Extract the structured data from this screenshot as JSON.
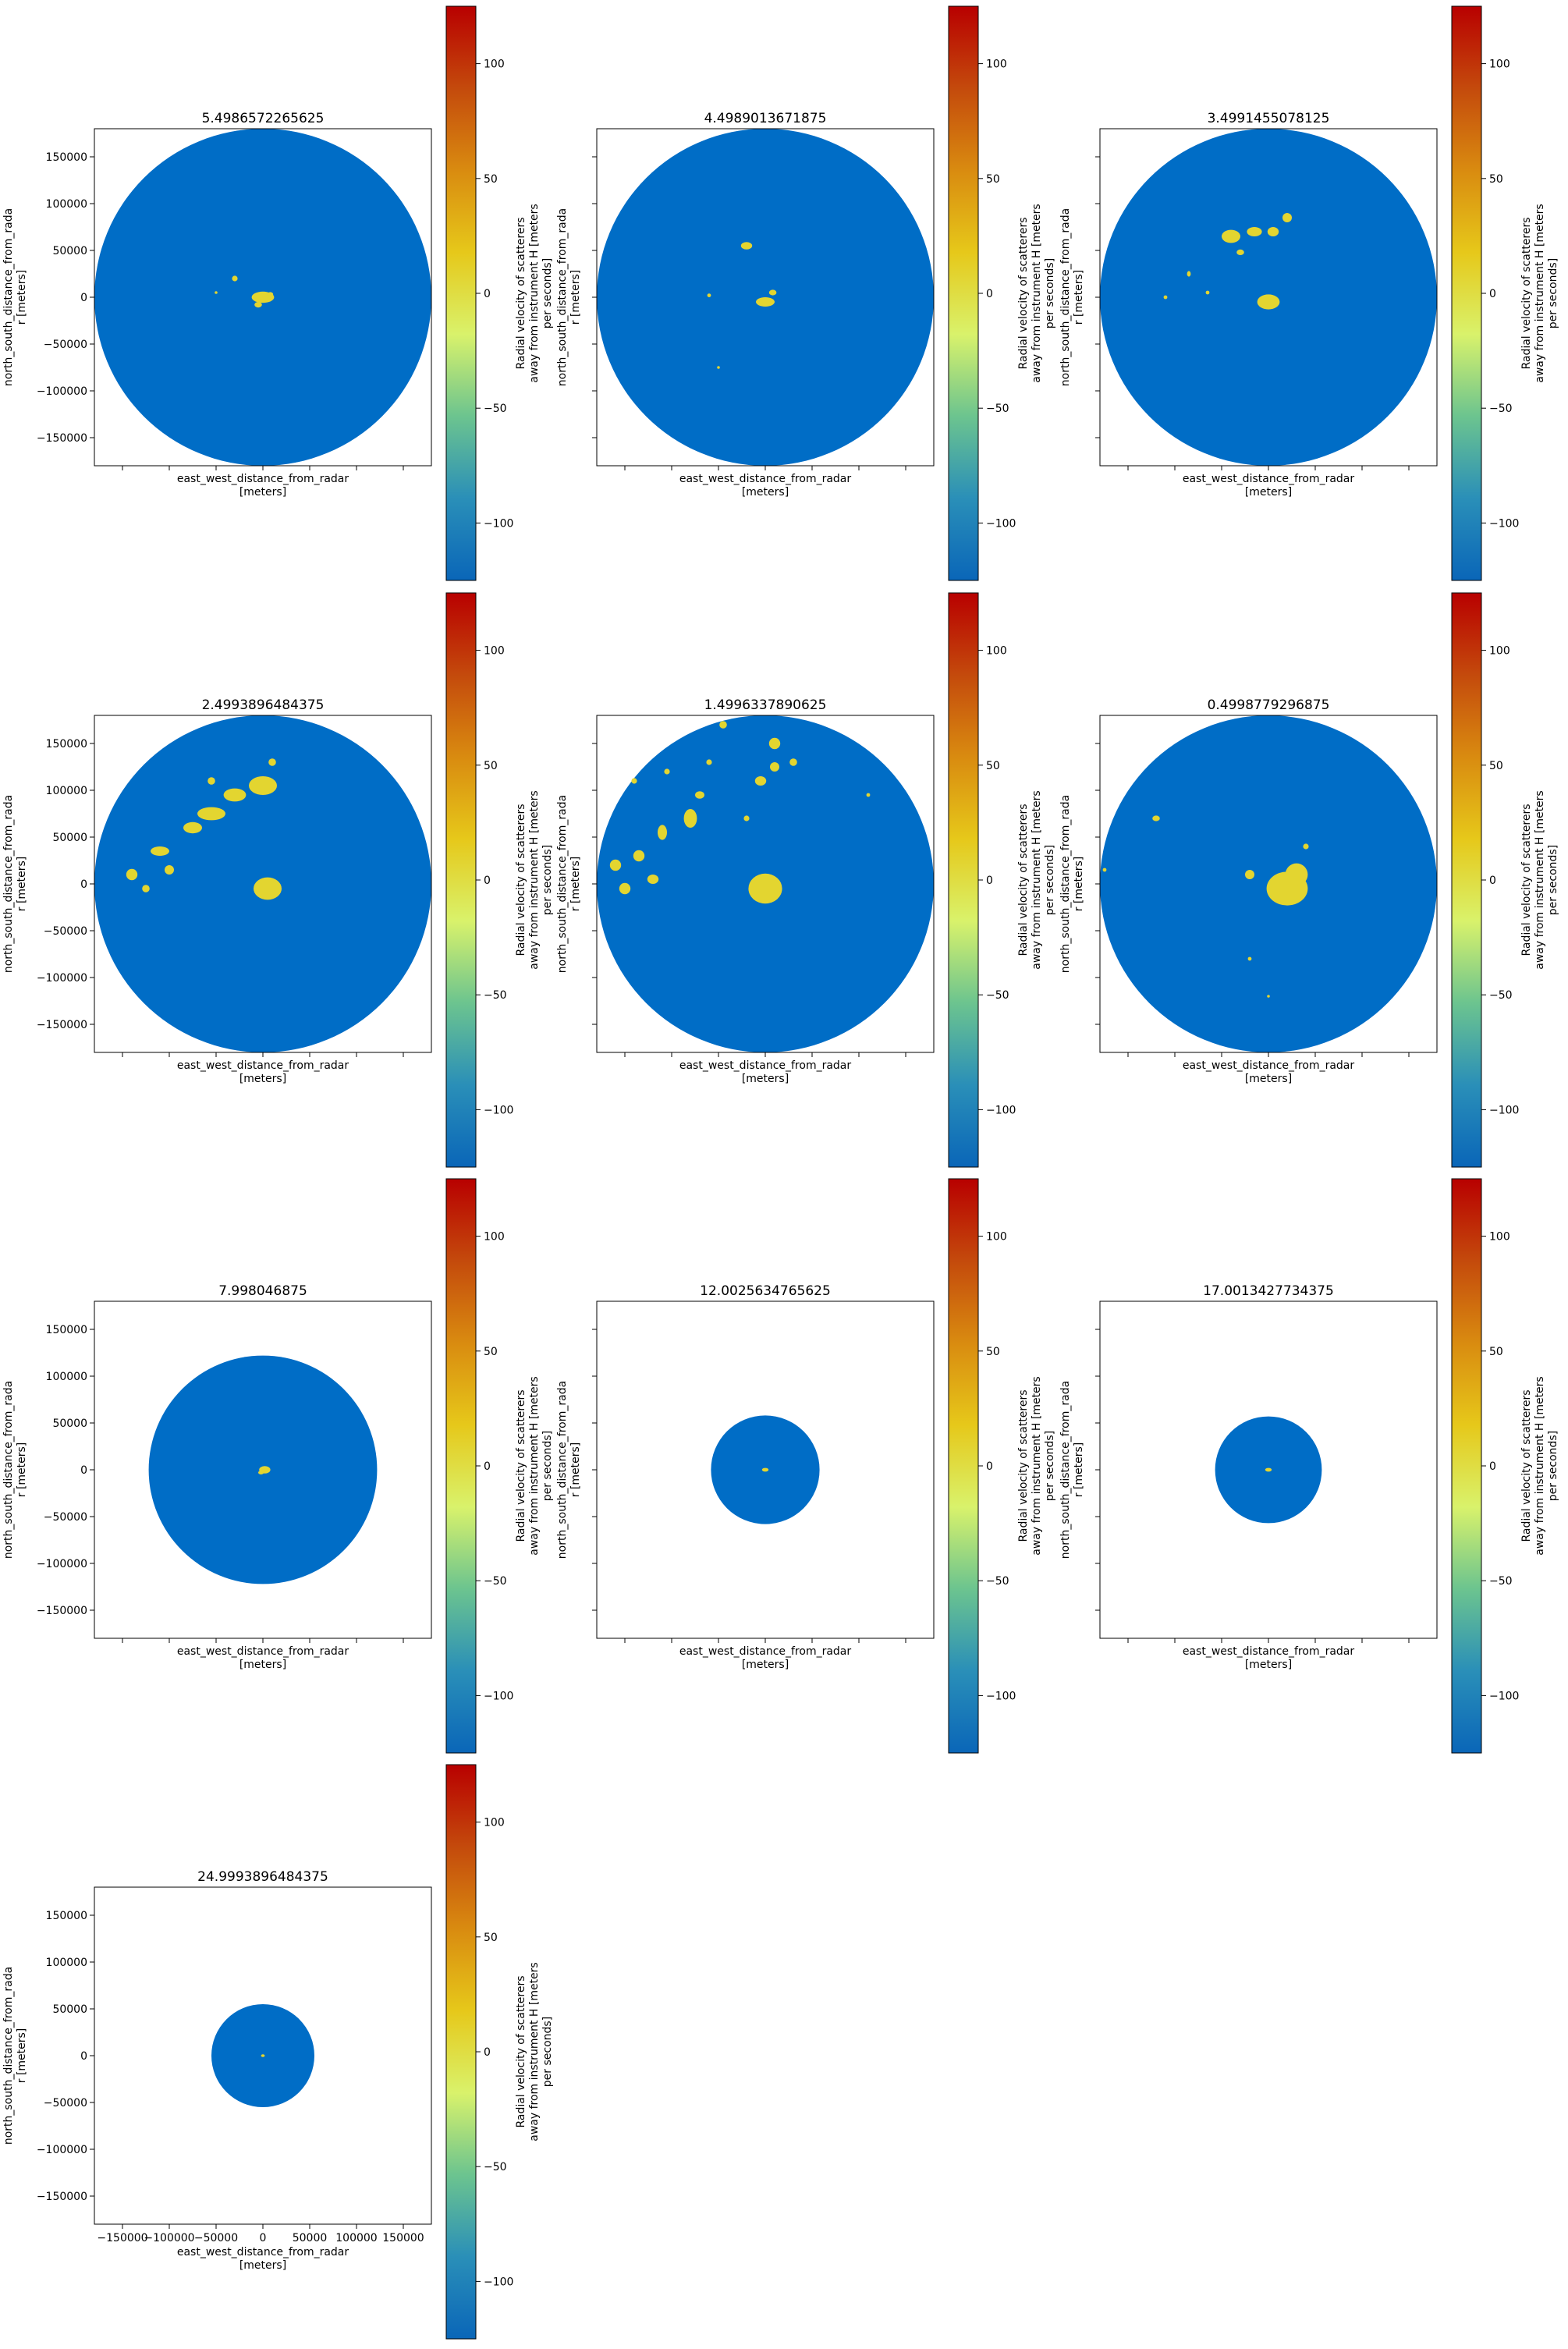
{
  "chart_data": {
    "type": "heatmap",
    "description_units": "radar radial velocity PPI panels, one per sweep elevation angle",
    "colorbar": {
      "label_lines": [
        "Radial velocity of scatterers",
        "away from instrument H [meters",
        "per seconds]"
      ],
      "range": [
        -125,
        125
      ],
      "ticks": [
        -100,
        -50,
        0,
        50,
        100
      ],
      "tick_labels": [
        "−100",
        "−50",
        "0",
        "50",
        "100"
      ],
      "colormap": [
        "#0a66b8",
        "#2a8fb8",
        "#6cc48f",
        "#d9f26b",
        "#e6c81a",
        "#d98b10",
        "#c44a0c",
        "#b80000"
      ]
    },
    "axes": {
      "xlabel_lines": [
        "east_west_distance_from_radar",
        "[meters]"
      ],
      "ylabel_lines": [
        "north_south_distance_from_rada",
        "r [meters]"
      ],
      "xlim": [
        -180000,
        180000
      ],
      "ylim": [
        -180000,
        180000
      ],
      "xticks": [
        -150000,
        -100000,
        -50000,
        0,
        50000,
        100000,
        150000
      ],
      "xtick_labels": [
        "−150000",
        "−100000",
        "−50000",
        "0",
        "50000",
        "100000",
        "150000"
      ],
      "yticks": [
        -150000,
        -100000,
        -50000,
        0,
        50000,
        100000,
        150000
      ],
      "ytick_labels": [
        "−150000",
        "−100000",
        "−50000",
        "0",
        "50000",
        "100000",
        "150000"
      ]
    },
    "colors": {
      "background_velocity": "#006dc6",
      "echo_velocity": "#e3d530"
    },
    "panels": [
      {
        "title": "5.4986572265625",
        "radius": 180000,
        "show_xticklabels": false,
        "show_ylabel": true,
        "echoes": [
          [
            0,
            0,
            12000,
            6000
          ],
          [
            -30000,
            20000,
            3000,
            3000
          ],
          [
            -50000,
            5000,
            1500,
            1500
          ],
          [
            -5000,
            -8000,
            4000,
            3000
          ],
          [
            8000,
            3000,
            3000,
            2500
          ]
        ]
      },
      {
        "title": "4.4989013671875",
        "radius": 180000,
        "show_xticklabels": false,
        "show_ylabel": true,
        "echoes": [
          [
            -20000,
            55000,
            6000,
            4000
          ],
          [
            -60000,
            2000,
            2000,
            2000
          ],
          [
            0,
            -5000,
            10000,
            5000
          ],
          [
            8000,
            5000,
            4000,
            3000
          ],
          [
            -50000,
            -75000,
            1500,
            1500
          ]
        ]
      },
      {
        "title": "3.4991455078125",
        "radius": 180000,
        "show_xticklabels": false,
        "show_ylabel": true,
        "echoes": [
          [
            -40000,
            65000,
            10000,
            7000
          ],
          [
            -15000,
            70000,
            8000,
            5000
          ],
          [
            5000,
            70000,
            6000,
            5000
          ],
          [
            20000,
            85000,
            5000,
            5000
          ],
          [
            -30000,
            48000,
            4000,
            3000
          ],
          [
            -85000,
            25000,
            2000,
            3000
          ],
          [
            -65000,
            5000,
            2000,
            2000
          ],
          [
            0,
            -5000,
            12000,
            8000
          ],
          [
            -110000,
            0,
            2000,
            2000
          ]
        ]
      },
      {
        "title": "2.4993896484375",
        "radius": 180000,
        "show_xticklabels": false,
        "show_ylabel": true,
        "echoes": [
          [
            0,
            105000,
            15000,
            10000
          ],
          [
            -30000,
            95000,
            12000,
            7000
          ],
          [
            -55000,
            75000,
            15000,
            7000
          ],
          [
            -75000,
            60000,
            10000,
            6000
          ],
          [
            -110000,
            35000,
            10000,
            5000
          ],
          [
            -140000,
            10000,
            6000,
            6000
          ],
          [
            -125000,
            -5000,
            4000,
            4000
          ],
          [
            -100000,
            15000,
            5000,
            5000
          ],
          [
            -55000,
            110000,
            4000,
            4000
          ],
          [
            10000,
            130000,
            4000,
            4000
          ],
          [
            5000,
            -5000,
            15000,
            12000
          ]
        ]
      },
      {
        "title": "1.4996337890625",
        "radius": 180000,
        "show_xticklabels": false,
        "show_ylabel": true,
        "echoes": [
          [
            0,
            -5000,
            18000,
            16000
          ],
          [
            10000,
            150000,
            6000,
            6000
          ],
          [
            10000,
            125000,
            5000,
            5000
          ],
          [
            -5000,
            110000,
            6000,
            5000
          ],
          [
            30000,
            130000,
            4000,
            4000
          ],
          [
            -70000,
            95000,
            5000,
            4000
          ],
          [
            -80000,
            70000,
            7000,
            10000
          ],
          [
            -110000,
            55000,
            5000,
            8000
          ],
          [
            -135000,
            30000,
            6000,
            6000
          ],
          [
            -160000,
            20000,
            6000,
            6000
          ],
          [
            -150000,
            -5000,
            6000,
            6000
          ],
          [
            -120000,
            5000,
            6000,
            5000
          ],
          [
            -45000,
            170000,
            4000,
            4000
          ],
          [
            -105000,
            120000,
            3000,
            3000
          ],
          [
            -60000,
            130000,
            3000,
            3000
          ],
          [
            -140000,
            110000,
            3000,
            3000
          ],
          [
            -20000,
            70000,
            3000,
            3000
          ],
          [
            110000,
            95000,
            2000,
            2000
          ]
        ]
      },
      {
        "title": "0.4998779296875",
        "radius": 180000,
        "show_xticklabels": false,
        "show_ylabel": true,
        "echoes": [
          [
            20000,
            -5000,
            22000,
            18000
          ],
          [
            30000,
            10000,
            12000,
            12000
          ],
          [
            -20000,
            10000,
            5000,
            5000
          ],
          [
            -120000,
            70000,
            4000,
            3000
          ],
          [
            -175000,
            15000,
            2000,
            2000
          ],
          [
            -20000,
            -80000,
            2000,
            2000
          ],
          [
            0,
            -120000,
            1500,
            1500
          ],
          [
            40000,
            40000,
            3000,
            3000
          ]
        ]
      },
      {
        "title": "7.998046875",
        "radius": 122000,
        "show_xticklabels": false,
        "show_ylabel": true,
        "echoes": [
          [
            2000,
            0,
            6000,
            4000
          ],
          [
            -2000,
            -3000,
            3000,
            2000
          ]
        ]
      },
      {
        "title": "12.0025634765625",
        "radius": 58000,
        "show_xticklabels": false,
        "show_ylabel": true,
        "echoes": [
          [
            0,
            0,
            3500,
            2000
          ]
        ]
      },
      {
        "title": "17.0013427734375",
        "radius": 57000,
        "show_xticklabels": false,
        "show_ylabel": true,
        "echoes": [
          [
            0,
            0,
            3500,
            2000
          ]
        ]
      },
      {
        "title": "24.9993896484375",
        "radius": 55000,
        "show_xticklabels": true,
        "show_ylabel": true,
        "echoes": [
          [
            0,
            0,
            2000,
            1500
          ]
        ]
      }
    ]
  }
}
